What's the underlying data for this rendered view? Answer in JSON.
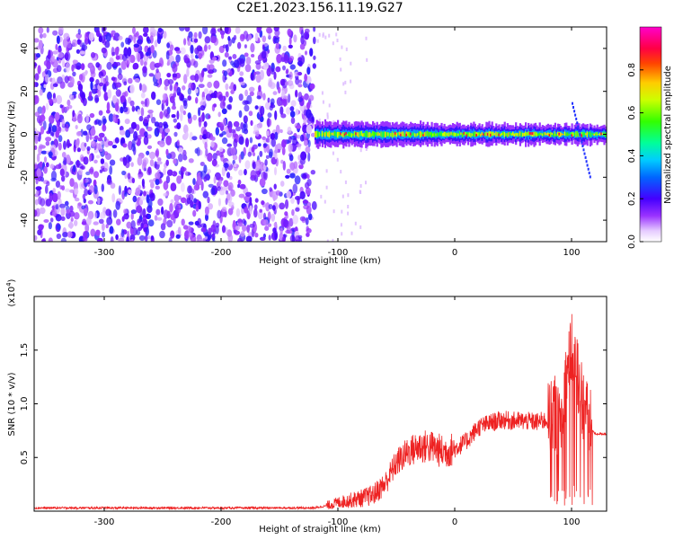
{
  "title": "C2E1.2023.156.11.19.G27",
  "colors": {
    "snr_line": "#ee2222",
    "colormap": [
      "#ffffff",
      "#7a00ff",
      "#0000ff",
      "#00c8ff",
      "#00ff80",
      "#ffff00",
      "#ff8000",
      "#ff0000",
      "#ff00c0"
    ]
  },
  "chart_data": [
    {
      "type": "heatmap",
      "title": "C2E1.2023.156.11.19.G27",
      "xlabel": "Height of straight line (km)",
      "ylabel": "Frequency (Hz)",
      "xlim": [
        -360,
        130
      ],
      "ylim": [
        -50,
        50
      ],
      "xticks": [
        -300,
        -200,
        -100,
        0,
        100
      ],
      "yticks": [
        -40,
        -20,
        0,
        20,
        40
      ],
      "grid": false,
      "colorbar": {
        "label": "Normalized spectral amplitude",
        "range": [
          0.0,
          1.0
        ],
        "ticks": [
          "0.0",
          "0.2",
          "0.4",
          "0.6",
          "0.8"
        ]
      },
      "regions": [
        {
          "x_range": [
            -360,
            -120
          ],
          "description_values": {
            "freq_range": [
              -50,
              50
            ],
            "amplitude": 0.12
          }
        },
        {
          "x_range": [
            -120,
            130
          ],
          "description_values": {
            "freq_center": 0,
            "amplitude_peak": 0.9
          }
        }
      ]
    },
    {
      "type": "line",
      "xlabel": "Height of straight line (km)",
      "ylabel": "SNR (10 * v/v)",
      "scale_label": "(x10",
      "scale_exponent": "4",
      "xlim": [
        -360,
        130
      ],
      "ylim": [
        0,
        2
      ],
      "xticks": [
        -300,
        -200,
        -100,
        0,
        100
      ],
      "yticks": [
        "0.5",
        "1.0",
        "1.5"
      ],
      "grid": false,
      "series": [
        {
          "x": [
            -360,
            -300,
            -250,
            -200,
            -150,
            -120,
            -110,
            -100,
            -90,
            -80,
            -70,
            -60,
            -50,
            -40,
            -30,
            -20,
            -10,
            0,
            10,
            20,
            30,
            40,
            50,
            60,
            70,
            80,
            85,
            90,
            95,
            100,
            105,
            110,
            115,
            120,
            130
          ],
          "y": [
            0.03,
            0.03,
            0.03,
            0.03,
            0.03,
            0.03,
            0.05,
            0.08,
            0.1,
            0.12,
            0.15,
            0.25,
            0.45,
            0.55,
            0.6,
            0.6,
            0.55,
            0.58,
            0.65,
            0.78,
            0.82,
            0.85,
            0.84,
            0.84,
            0.83,
            0.85,
            0.95,
            0.75,
            1.2,
            1.5,
            1.3,
            1.0,
            0.8,
            0.72,
            0.72
          ]
        }
      ]
    }
  ]
}
